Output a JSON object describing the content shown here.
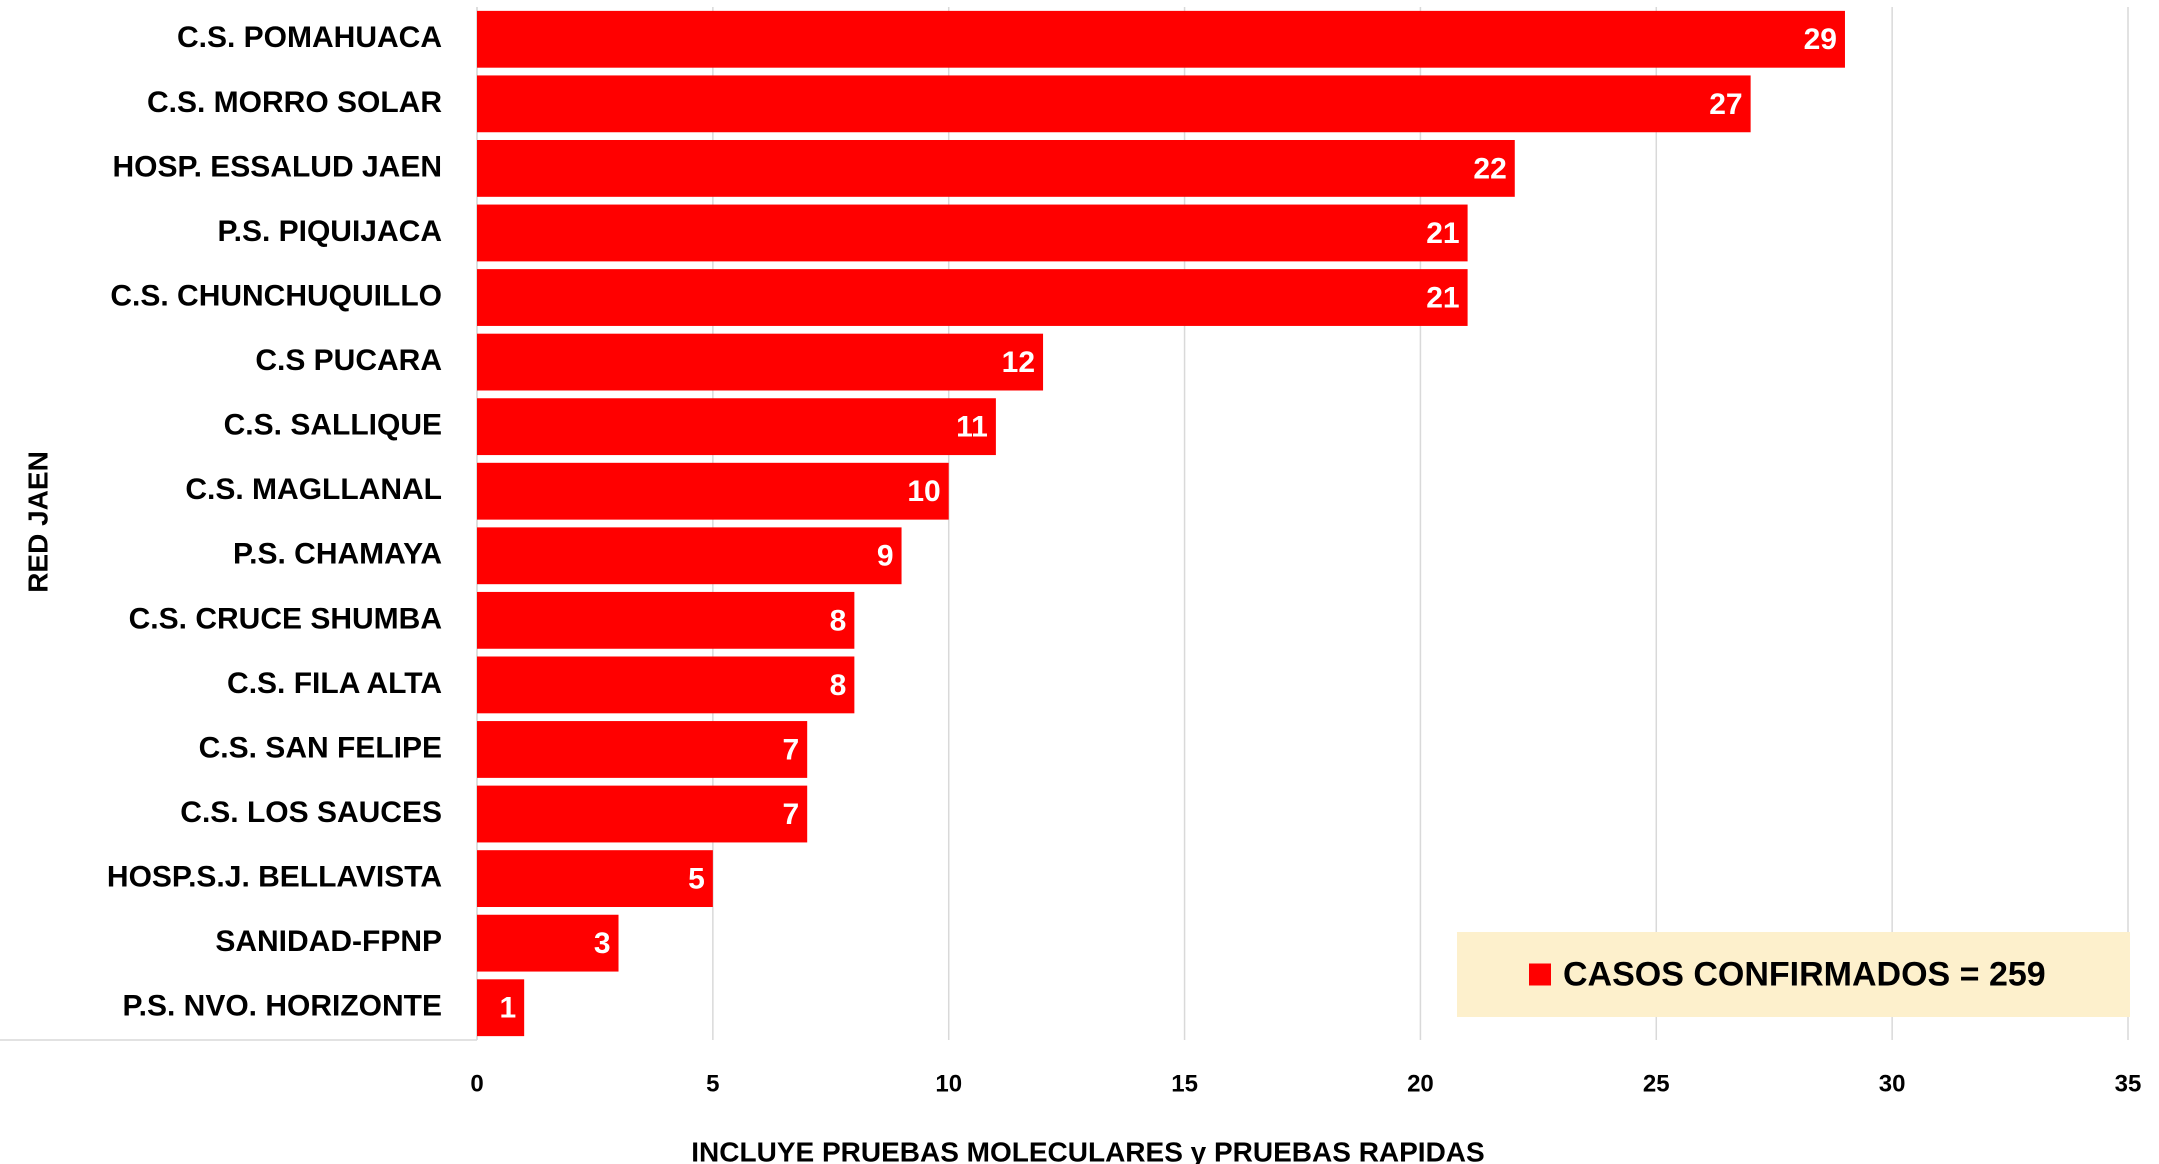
{
  "chart_data": {
    "type": "hbar",
    "categories": [
      "C.S. POMAHUACA",
      "C.S. MORRO SOLAR",
      "HOSP. ESSALUD JAEN",
      "P.S. PIQUIJACA",
      "C.S. CHUNCHUQUILLO",
      "C.S PUCARA",
      "C.S. SALLIQUE",
      "C.S. MAGLLANAL",
      "P.S. CHAMAYA",
      "C.S. CRUCE SHUMBA",
      "C.S. FILA ALTA",
      "C.S. SAN FELIPE",
      "C.S. LOS SAUCES",
      "HOSP.S.J. BELLAVISTA",
      "SANIDAD-FPNP",
      "P.S. NVO. HORIZONTE"
    ],
    "series": [
      {
        "name": "CASOS CONFIRMADOS = 259",
        "color": "#ff0000",
        "values": [
          29,
          27,
          22,
          21,
          21,
          12,
          11,
          10,
          9,
          8,
          8,
          7,
          7,
          5,
          3,
          1
        ]
      }
    ],
    "xlabel": "INCLUYE PRUEBAS MOLECULARES y PRUEBAS RAPIDAS",
    "ylabel": "RED JAEN",
    "xlim": [
      0,
      35
    ],
    "xticks": [
      0,
      5,
      10,
      15,
      20,
      25,
      30,
      35
    ],
    "grid": true,
    "legend": "lower right",
    "legend_background": "#fdf0cc"
  }
}
